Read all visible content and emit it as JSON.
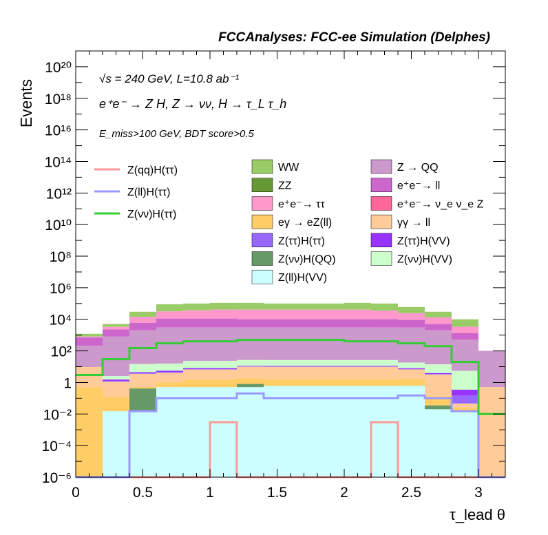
{
  "chart_data": {
    "type": "bar",
    "stacked": true,
    "title": "FCCAnalyses: FCC-ee Simulation (Delphes)",
    "xlabel": "τ_lead θ",
    "ylabel": "Events",
    "yscale": "log",
    "xlim": [
      0,
      3.2
    ],
    "ylim": [
      1e-06,
      1e+21
    ],
    "annotations": [
      "√s = 240 GeV, L=10.8 ab⁻¹",
      "e⁺e⁻ → Z H, Z → νν, H → τ_L τ_h",
      "E_miss>100 GeV, BDT score>0.5"
    ],
    "x_ticks": [
      "0",
      "0.5",
      "1",
      "1.5",
      "2",
      "2.5",
      "3"
    ],
    "y_ticks": [
      "10⁻⁶",
      "10⁻⁴",
      "10⁻²",
      "1",
      "10²",
      "10⁴",
      "10⁶",
      "10⁸",
      "10¹⁰",
      "10¹²",
      "10¹⁴",
      "10¹⁶",
      "10¹⁸",
      "10²⁰"
    ],
    "bin_edges": [
      0,
      0.2,
      0.4,
      0.6,
      0.8,
      1.0,
      1.2,
      1.4,
      1.6,
      1.8,
      2.0,
      2.2,
      2.4,
      2.6,
      2.8,
      3.0,
      3.2
    ],
    "stack_totals": [
      1200,
      5000,
      30000,
      90000,
      100000,
      110000,
      110000,
      100000,
      100000,
      100000,
      110000,
      100000,
      60000,
      30000,
      10000,
      100
    ],
    "stack": [
      {
        "name": "Z(ll)H(VV)",
        "color": "#ccffff",
        "values": [
          0,
          0.015,
          0.015,
          0.5,
          0.5,
          0.5,
          0.5,
          0.6,
          0.6,
          0.6,
          0.6,
          0.6,
          0.6,
          0.02,
          0.015,
          0
        ]
      },
      {
        "name": "Z(νν)H(QQ)",
        "color": "#669966",
        "values": [
          0,
          0,
          0.4,
          0,
          0,
          0,
          0.3,
          0,
          0,
          0,
          0,
          0,
          0.015,
          0.015,
          0,
          0
        ]
      },
      {
        "name": "eγ → eZ(ll)",
        "color": "#ffcc66",
        "values": [
          0.5,
          0.1,
          0.1,
          0.5,
          1,
          1,
          1,
          1,
          1,
          1,
          1,
          1,
          1,
          0.1,
          0.01,
          0
        ]
      },
      {
        "name": "γγ → ll",
        "color": "#ffcc99",
        "values": [
          9,
          1,
          3,
          3,
          5,
          5,
          8,
          8,
          8,
          8,
          8,
          8,
          5,
          3,
          0.02,
          0.5
        ]
      },
      {
        "name": "Z(ττ)H(ττ)",
        "color": "#9966ff",
        "values": [
          0,
          0.1,
          0.5,
          0.5,
          0.5,
          0.5,
          0.5,
          0.5,
          0.5,
          0.5,
          0.5,
          0.5,
          0.5,
          0.3,
          0.1,
          0
        ]
      },
      {
        "name": "Z(ττ)H(VV)",
        "color": "#9933ff",
        "values": [
          0,
          0.3,
          0.5,
          1,
          1,
          1,
          1,
          1,
          1,
          1,
          1,
          1,
          0.8,
          0.5,
          0.2,
          0
        ]
      },
      {
        "name": "Z(νν)H(VV)",
        "color": "#ccffcc",
        "values": [
          0,
          1,
          10,
          10,
          15,
          15,
          15,
          15,
          15,
          15,
          15,
          15,
          10,
          10,
          5,
          0
        ]
      },
      {
        "name": "Z → QQ",
        "color": "#cc99cc",
        "values": [
          200,
          800,
          2000,
          3000,
          3000,
          3000,
          3000,
          3000,
          3000,
          3000,
          3000,
          3000,
          3000,
          2000,
          500,
          100
        ]
      },
      {
        "name": "e⁺e⁻→ ll",
        "color": "#cc66cc",
        "values": [
          500,
          1500,
          4000,
          8000,
          8000,
          8000,
          7000,
          7000,
          7000,
          7000,
          7000,
          7000,
          6000,
          3000,
          800,
          0
        ]
      },
      {
        "name": "e⁺e⁻→ ν_e ν_e Z",
        "color": "#ff6699",
        "values": [
          0,
          0,
          100,
          200,
          300,
          300,
          400,
          400,
          400,
          400,
          300,
          300,
          200,
          100,
          50,
          0
        ]
      },
      {
        "name": "e⁺e⁻→ ττ",
        "color": "#ff99cc",
        "values": [
          100,
          1000,
          8000,
          20000,
          25000,
          30000,
          30000,
          30000,
          30000,
          30000,
          30000,
          25000,
          15000,
          8000,
          2000,
          0
        ]
      },
      {
        "name": "ZZ",
        "color": "#669933",
        "values": [
          0,
          0,
          0,
          0,
          0,
          0,
          0,
          0,
          0,
          0,
          0,
          0,
          0,
          0,
          0,
          0
        ]
      },
      {
        "name": "WW",
        "color": "#99cc66",
        "values": [
          400,
          1700,
          16000,
          58000,
          63000,
          68000,
          69000,
          59000,
          59000,
          59000,
          69000,
          64000,
          35000,
          17000,
          6600,
          0
        ]
      }
    ],
    "signals": [
      {
        "name": "Z(qq)H(ττ)",
        "color": "#ff9999",
        "values": [
          0,
          0,
          0,
          0,
          0,
          0.003,
          0,
          0,
          0,
          0,
          0,
          0.003,
          0,
          0,
          0,
          0
        ]
      },
      {
        "name": "Z(ll)H(ττ)",
        "color": "#9999ff",
        "values": [
          0,
          0,
          0.015,
          0.1,
          0.1,
          0.1,
          0.2,
          0.1,
          0.1,
          0.1,
          0.1,
          0.1,
          0.15,
          0.1,
          0.015,
          0
        ]
      },
      {
        "name": "Z(νν)H(ττ)",
        "color": "#33cc33",
        "values": [
          3,
          30,
          150,
          300,
          400,
          400,
          500,
          500,
          500,
          500,
          400,
          400,
          300,
          200,
          20,
          0.01
        ]
      }
    ],
    "legend": {
      "signals": [
        "Z(qq)H(ττ)",
        "Z(ll)H(ττ)",
        "Z(νν)H(ττ)"
      ],
      "col1": [
        "WW",
        "ZZ",
        "e⁺e⁻→ ττ",
        "eγ → eZ(ll)",
        "Z(ττ)H(ττ)",
        "Z(νν)H(QQ)",
        "Z(ll)H(VV)"
      ],
      "col2": [
        "Z → QQ",
        "e⁺e⁻→ ll",
        "e⁺e⁻→ ν_e ν_e Z",
        "γγ → ll",
        "Z(ττ)H(VV)",
        "Z(νν)H(VV)"
      ]
    }
  }
}
